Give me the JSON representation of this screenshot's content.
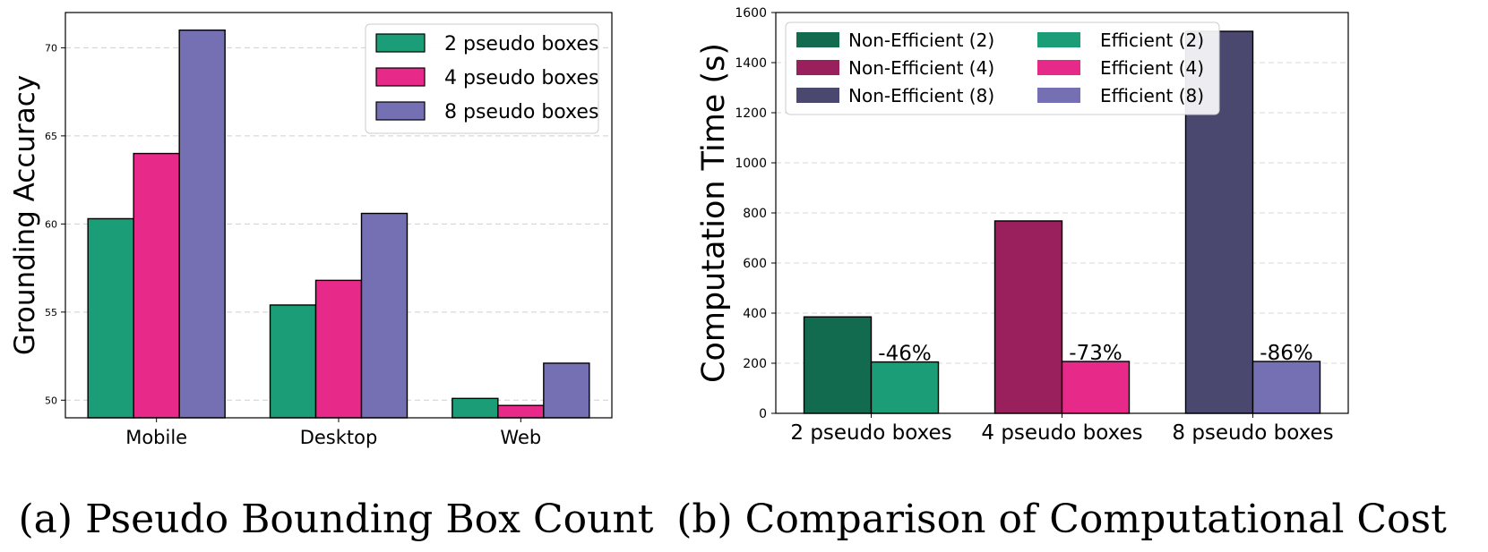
{
  "chart_data": [
    {
      "type": "bar",
      "panel_caption": "(a) Pseudo Bounding Box Count",
      "ylabel": "Grounding Accuracy",
      "xlabel": "",
      "categories": [
        "Mobile",
        "Desktop",
        "Web"
      ],
      "series": [
        {
          "name": "2 pseudo boxes",
          "color": "#1b9e77",
          "values": [
            60.3,
            55.4,
            50.1
          ]
        },
        {
          "name": "4 pseudo boxes",
          "color": "#e7298a",
          "values": [
            64.0,
            56.8,
            49.7
          ]
        },
        {
          "name": "8 pseudo boxes",
          "color": "#7570b3",
          "values": [
            71.0,
            60.6,
            52.1
          ]
        }
      ],
      "ylim": [
        49,
        72
      ],
      "yticks": [
        "50",
        "55",
        "60",
        "65",
        "70"
      ],
      "grid": "horizontal dashed",
      "legend": "top-right"
    },
    {
      "type": "bar",
      "panel_caption": "(b) Comparison of Computational Cost",
      "ylabel": "Computation Time (s)",
      "xlabel": "",
      "categories": [
        "2 pseudo boxes",
        "4 pseudo boxes",
        "8 pseudo boxes"
      ],
      "bars": [
        {
          "name": "Non-Efficient (2)",
          "category": "2 pseudo boxes",
          "value": 385,
          "color": "#136b4f"
        },
        {
          "name": "Efficient (2)",
          "category": "2 pseudo boxes",
          "value": 205,
          "color": "#1b9e77",
          "annotation": "-46%"
        },
        {
          "name": "Non-Efficient (4)",
          "category": "4 pseudo boxes",
          "value": 768,
          "color": "#9a1f5d"
        },
        {
          "name": "Efficient (4)",
          "category": "4 pseudo boxes",
          "value": 207,
          "color": "#e7298a",
          "annotation": "-73%"
        },
        {
          "name": "Non-Efficient (8)",
          "category": "8 pseudo boxes",
          "value": 1525,
          "color": "#4b4870"
        },
        {
          "name": "Efficient (8)",
          "category": "8 pseudo boxes",
          "value": 207,
          "color": "#7570b3",
          "annotation": "-86%"
        }
      ],
      "legend_order": [
        "Non-Efficient (2)",
        "Efficient (2)",
        "Non-Efficient (4)",
        "Efficient (4)",
        "Non-Efficient (8)",
        "Efficient (8)"
      ],
      "ylim": [
        0,
        1600
      ],
      "yticks": [
        "0",
        "200",
        "400",
        "600",
        "800",
        "1000",
        "1200",
        "1400",
        "1600"
      ],
      "grid": "horizontal dashed",
      "legend": "top-left, two columns"
    }
  ]
}
